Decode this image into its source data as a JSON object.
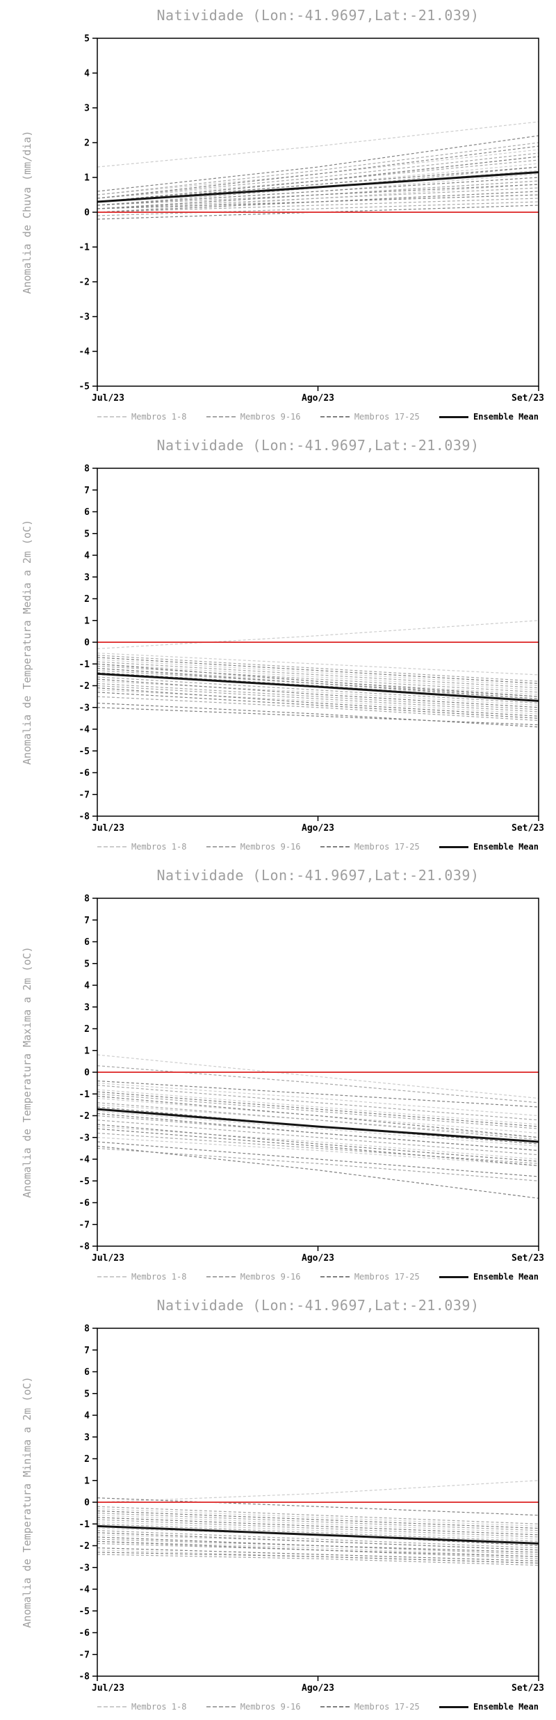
{
  "colors": {
    "member_group_colors": [
      "#cccccc",
      "#a6a6a6",
      "#7f7f7f"
    ],
    "ensemble_mean": "#141414",
    "zero_line": "#e03c3c",
    "frame": "#000000",
    "title_text": "#9e9e9e",
    "tick_text": "#000000",
    "legend_member_text": "#9e9e9e"
  },
  "chart_data": [
    {
      "type": "line",
      "title": "Natividade (Lon:-41.9697,Lat:-21.039)",
      "ylabel": "Anomalia de Chuva (mm/dia)",
      "x": [
        "Jul/23",
        "Ago/23",
        "Set/23"
      ],
      "ylim": [
        -5,
        5
      ],
      "ytick_step": 1,
      "zero_line": 0,
      "member_groups": [
        {
          "label": "Membros 1-8",
          "series": [
            [
              0.3,
              0.8,
              1.4
            ],
            [
              0.1,
              0.5,
              0.9
            ],
            [
              1.3,
              1.9,
              2.6
            ],
            [
              0.4,
              0.9,
              1.6
            ],
            [
              0.2,
              0.6,
              1.1
            ],
            [
              0.0,
              0.4,
              0.8
            ],
            [
              0.5,
              1.1,
              1.8
            ],
            [
              0.3,
              0.7,
              1.2
            ]
          ]
        },
        {
          "label": "Membros 9-16",
          "series": [
            [
              0.2,
              0.5,
              0.9
            ],
            [
              0.0,
              0.2,
              0.4
            ],
            [
              0.4,
              1.0,
              1.7
            ],
            [
              0.1,
              0.4,
              0.7
            ],
            [
              0.3,
              0.9,
              1.5
            ],
            [
              -0.1,
              0.1,
              0.3
            ],
            [
              0.5,
              1.2,
              2.0
            ],
            [
              0.2,
              0.7,
              1.3
            ]
          ]
        },
        {
          "label": "Membros 17-25",
          "series": [
            [
              0.0,
              0.3,
              0.5
            ],
            [
              0.3,
              0.8,
              1.3
            ],
            [
              0.1,
              0.3,
              0.6
            ],
            [
              0.4,
              1.1,
              1.9
            ],
            [
              -0.2,
              0.0,
              0.2
            ],
            [
              0.2,
              0.6,
              1.0
            ],
            [
              0.6,
              1.3,
              2.2
            ],
            [
              0.1,
              0.5,
              0.8
            ],
            [
              0.3,
              0.9,
              1.6
            ]
          ]
        }
      ],
      "ensemble_mean": {
        "label": "Ensemble Mean",
        "values": [
          0.3,
          0.72,
          1.15
        ]
      }
    },
    {
      "type": "line",
      "title": "Natividade (Lon:-41.9697,Lat:-21.039)",
      "ylabel": "Anomalia de Temperatura Media a 2m (oC)",
      "x": [
        "Jul/23",
        "Ago/23",
        "Set/23"
      ],
      "ylim": [
        -8,
        8
      ],
      "ytick_step": 1,
      "zero_line": 0,
      "member_groups": [
        {
          "label": "Membros 1-8",
          "series": [
            [
              -0.5,
              -1.0,
              -1.5
            ],
            [
              -1.2,
              -1.8,
              -2.4
            ],
            [
              -0.3,
              0.3,
              1.0
            ],
            [
              -1.8,
              -2.3,
              -2.9
            ],
            [
              -0.8,
              -1.4,
              -2.0
            ],
            [
              -2.2,
              -2.7,
              -3.3
            ],
            [
              -1.0,
              -1.6,
              -2.2
            ],
            [
              -1.5,
              -2.0,
              -2.6
            ]
          ]
        },
        {
          "label": "Membros 9-16",
          "series": [
            [
              -0.6,
              -1.2,
              -1.8
            ],
            [
              -1.9,
              -2.5,
              -3.1
            ],
            [
              -1.1,
              -1.7,
              -2.3
            ],
            [
              -2.5,
              -3.0,
              -3.6
            ],
            [
              -0.9,
              -1.5,
              -2.1
            ],
            [
              -1.6,
              -2.2,
              -2.8
            ],
            [
              -2.0,
              -2.6,
              -3.2
            ],
            [
              -1.3,
              -1.9,
              -2.5
            ]
          ]
        },
        {
          "label": "Membros 17-25",
          "series": [
            [
              -2.8,
              -3.3,
              -3.9
            ],
            [
              -1.4,
              -2.0,
              -2.7
            ],
            [
              -0.7,
              -1.3,
              -1.9
            ],
            [
              -2.3,
              -2.9,
              -3.5
            ],
            [
              -1.7,
              -2.4,
              -3.0
            ],
            [
              -1.2,
              -1.9,
              -2.6
            ],
            [
              -3.0,
              -3.4,
              -3.8
            ],
            [
              -1.0,
              -1.8,
              -2.5
            ],
            [
              -2.1,
              -2.8,
              -3.4
            ]
          ]
        }
      ],
      "ensemble_mean": {
        "label": "Ensemble Mean",
        "values": [
          -1.45,
          -2.05,
          -2.7
        ]
      }
    },
    {
      "type": "line",
      "title": "Natividade (Lon:-41.9697,Lat:-21.039)",
      "ylabel": "Anomalia de Temperatura Maxima a 2m (oC)",
      "x": [
        "Jul/23",
        "Ago/23",
        "Set/23"
      ],
      "ylim": [
        -8,
        8
      ],
      "ytick_step": 1,
      "zero_line": 0,
      "member_groups": [
        {
          "label": "Membros 1-8",
          "series": [
            [
              -0.5,
              -1.2,
              -2.0
            ],
            [
              0.8,
              -0.2,
              -1.2
            ],
            [
              -1.5,
              -2.2,
              -3.0
            ],
            [
              -2.5,
              -3.2,
              -4.0
            ],
            [
              -0.8,
              -1.6,
              -2.4
            ],
            [
              -3.0,
              -3.6,
              -4.3
            ],
            [
              -1.2,
              -2.0,
              -2.8
            ],
            [
              -1.8,
              -2.6,
              -3.4
            ]
          ]
        },
        {
          "label": "Membros 9-16",
          "series": [
            [
              0.3,
              -0.5,
              -1.4
            ],
            [
              -2.0,
              -2.8,
              -3.6
            ],
            [
              -1.0,
              -1.8,
              -2.6
            ],
            [
              -3.5,
              -4.2,
              -5.0
            ],
            [
              -0.6,
              -1.4,
              -2.2
            ],
            [
              -2.2,
              -3.0,
              -3.8
            ],
            [
              -1.4,
              -2.2,
              -3.1
            ],
            [
              -2.8,
              -3.5,
              -4.2
            ]
          ]
        },
        {
          "label": "Membros 17-25",
          "series": [
            [
              -1.6,
              -2.5,
              -3.3
            ],
            [
              -3.2,
              -4.0,
              -4.8
            ],
            [
              -0.9,
              -1.7,
              -2.5
            ],
            [
              -2.4,
              -3.3,
              -4.1
            ],
            [
              -1.1,
              -2.0,
              -3.0
            ],
            [
              -3.4,
              -4.5,
              -5.8
            ],
            [
              -1.9,
              -2.8,
              -3.6
            ],
            [
              -0.4,
              -1.0,
              -1.6
            ],
            [
              -2.6,
              -3.4,
              -4.3
            ]
          ]
        }
      ],
      "ensemble_mean": {
        "label": "Ensemble Mean",
        "values": [
          -1.7,
          -2.5,
          -3.2
        ]
      }
    },
    {
      "type": "line",
      "title": "Natividade (Lon:-41.9697,Lat:-21.039)",
      "ylabel": "Anomalia de Temperatura Minima a 2m (oC)",
      "x": [
        "Jul/23",
        "Ago/23",
        "Set/23"
      ],
      "ylim": [
        -8,
        8
      ],
      "ytick_step": 1,
      "zero_line": 0,
      "member_groups": [
        {
          "label": "Membros 1-8",
          "series": [
            [
              -0.3,
              -0.7,
              -1.1
            ],
            [
              -1.2,
              -1.5,
              -1.9
            ],
            [
              0.0,
              0.4,
              1.0
            ],
            [
              -1.8,
              -2.1,
              -2.5
            ],
            [
              -0.6,
              -1.0,
              -1.4
            ],
            [
              -2.2,
              -2.5,
              -2.8
            ],
            [
              -0.9,
              -1.3,
              -1.7
            ],
            [
              -1.5,
              -1.8,
              -2.2
            ]
          ]
        },
        {
          "label": "Membros 9-16",
          "series": [
            [
              -0.2,
              -0.6,
              -1.0
            ],
            [
              -1.7,
              -2.0,
              -2.4
            ],
            [
              -0.8,
              -1.2,
              -1.6
            ],
            [
              -2.4,
              -2.6,
              -2.9
            ],
            [
              -0.5,
              -0.9,
              -1.3
            ],
            [
              -1.3,
              -1.7,
              -2.1
            ],
            [
              -1.9,
              -2.2,
              -2.6
            ],
            [
              -1.0,
              -1.4,
              -1.8
            ]
          ]
        },
        {
          "label": "Membros 17-25",
          "series": [
            [
              -2.1,
              -2.4,
              -2.7
            ],
            [
              -1.1,
              -1.5,
              -2.0
            ],
            [
              -0.4,
              -0.8,
              -1.2
            ],
            [
              -1.6,
              -2.0,
              -2.3
            ],
            [
              -0.7,
              -1.1,
              -1.5
            ],
            [
              -1.4,
              -1.8,
              -2.2
            ],
            [
              -2.3,
              -2.5,
              -2.8
            ],
            [
              0.2,
              -0.2,
              -0.6
            ],
            [
              -1.8,
              -2.2,
              -2.5
            ]
          ]
        }
      ],
      "ensemble_mean": {
        "label": "Ensemble Mean",
        "values": [
          -1.1,
          -1.5,
          -1.9
        ]
      }
    }
  ]
}
